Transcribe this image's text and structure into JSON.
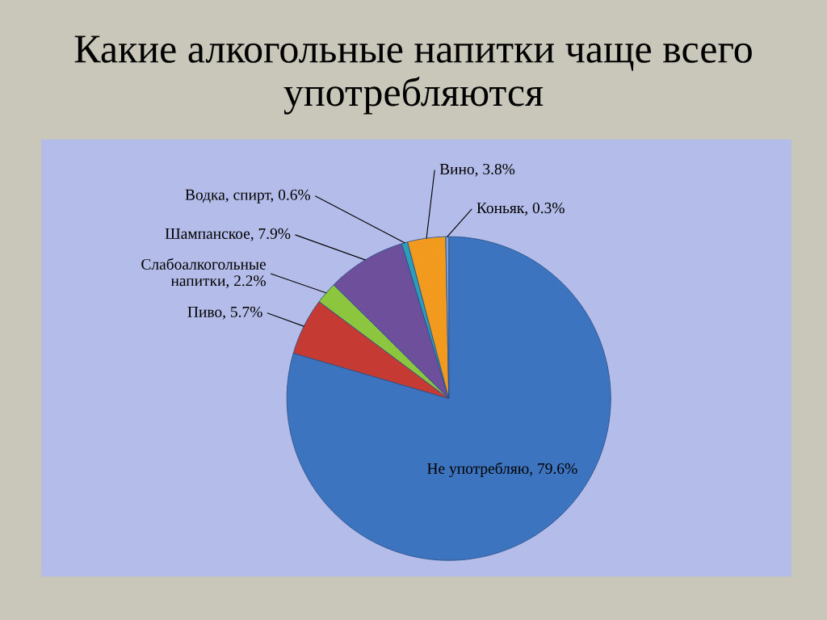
{
  "chart_data": {
    "type": "pie",
    "title": "Какие алкогольные напитки чаще всего употребляются",
    "categories": [
      "Не употребляю",
      "Пиво",
      "Слабоалкогольные напитки",
      "Шампанское",
      "Водка, спирт",
      "Вино",
      "Коньяк"
    ],
    "values": [
      79.6,
      5.7,
      2.2,
      7.9,
      0.6,
      3.8,
      0.3
    ],
    "value_labels": [
      "79.6%",
      "5.7%",
      "2.2%",
      "7.9%",
      "0.6%",
      "3.8%",
      "0.3%"
    ],
    "colors": [
      "#3d74bf",
      "#c53a33",
      "#8cc63e",
      "#6d4f9c",
      "#2b9fba",
      "#f29a1d",
      "#7fa6d9"
    ],
    "legend": false
  }
}
